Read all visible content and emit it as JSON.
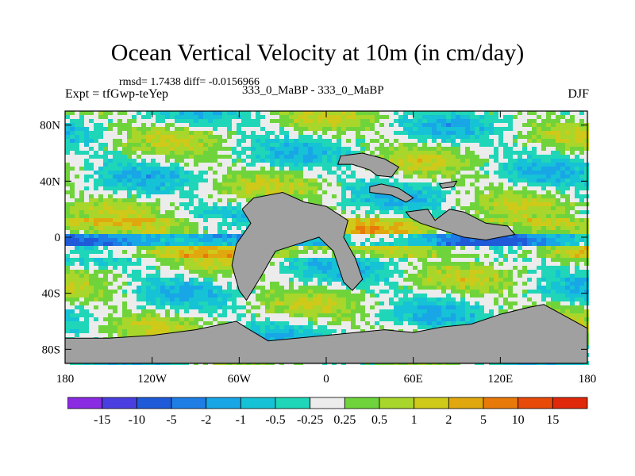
{
  "header": {
    "title": "Ocean Vertical Velocity at 10m (in cm/day)",
    "rmsd_line": "rmsd= 1.7438 diff= -0.0156966",
    "experiment": "Expt = tfGwp-teYep",
    "comparison": "333_0_MaBP - 333_0_MaBP",
    "season": "DJF"
  },
  "chart_data": {
    "type": "heatmap",
    "title": "Ocean Vertical Velocity at 10m (in cm/day)",
    "xlabel": "",
    "ylabel": "",
    "xlim": [
      -180,
      180
    ],
    "ylim": [
      -90,
      90
    ],
    "x_ticks": [
      {
        "value": -180,
        "label": "180"
      },
      {
        "value": -120,
        "label": "120W"
      },
      {
        "value": -60,
        "label": "60W"
      },
      {
        "value": 0,
        "label": "0"
      },
      {
        "value": 60,
        "label": "60E"
      },
      {
        "value": 120,
        "label": "120E"
      },
      {
        "value": 180,
        "label": "180"
      }
    ],
    "y_ticks": [
      {
        "value": 80,
        "label": "80N"
      },
      {
        "value": 40,
        "label": "40N"
      },
      {
        "value": 0,
        "label": "0"
      },
      {
        "value": -40,
        "label": "40S"
      },
      {
        "value": -80,
        "label": "80S"
      }
    ],
    "land_color": "#a0a0a0",
    "colorbar": {
      "colors": [
        "#8a2be2",
        "#4b3ee0",
        "#1f5bd8",
        "#1e7ee6",
        "#18a6e6",
        "#16c2d6",
        "#1fd6b8",
        "#ececec",
        "#6fd43c",
        "#a8d62a",
        "#cfc91a",
        "#e0a80e",
        "#e87a0a",
        "#e84a0a",
        "#e0280a"
      ],
      "labels": [
        "-15",
        "-10",
        "-5",
        "-2",
        "-1",
        "-0.5",
        "-0.25",
        "0.25",
        "0.5",
        "1",
        "2",
        "5",
        "10",
        "15"
      ]
    }
  }
}
